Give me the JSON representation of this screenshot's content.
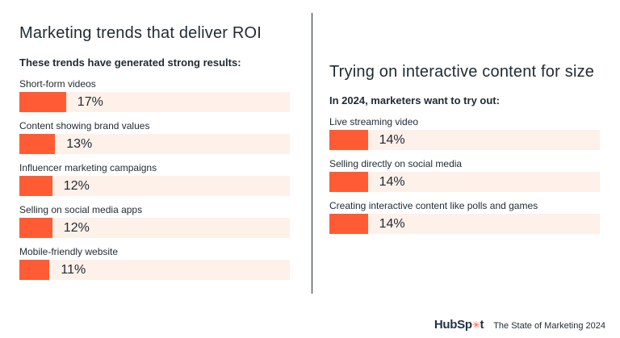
{
  "colors": {
    "bar": "#ff5c35",
    "track": "#fdf1ea",
    "text": "#1f2a33"
  },
  "left": {
    "title": "Marketing trends that deliver ROI",
    "subtitle": "These trends have generated strong results:"
  },
  "right": {
    "title": "Trying on interactive content for size",
    "subtitle": "In 2024, marketers want to try out:"
  },
  "footer": {
    "logo_text_a": "HubSp",
    "logo_text_b": "t",
    "report": "The State of Marketing 2024"
  },
  "chart_data": [
    {
      "type": "bar",
      "title": "Marketing trends that deliver ROI",
      "subtitle": "These trends have generated strong results:",
      "orientation": "horizontal",
      "xlim": [
        0,
        100
      ],
      "categories": [
        "Short-form videos",
        "Content showing brand values",
        "Influencer marketing campaigns",
        "Selling on social media apps",
        "Mobile-friendly website"
      ],
      "values": [
        17,
        13,
        12,
        12,
        11
      ],
      "value_labels": [
        "17%",
        "13%",
        "12%",
        "12%",
        "11%"
      ]
    },
    {
      "type": "bar",
      "title": "Trying on interactive content for size",
      "subtitle": "In 2024, marketers want to try out:",
      "orientation": "horizontal",
      "xlim": [
        0,
        100
      ],
      "categories": [
        "Live streaming video",
        "Selling directly on social media",
        "Creating interactive content like polls and games"
      ],
      "values": [
        14,
        14,
        14
      ],
      "value_labels": [
        "14%",
        "14%",
        "14%"
      ]
    }
  ]
}
